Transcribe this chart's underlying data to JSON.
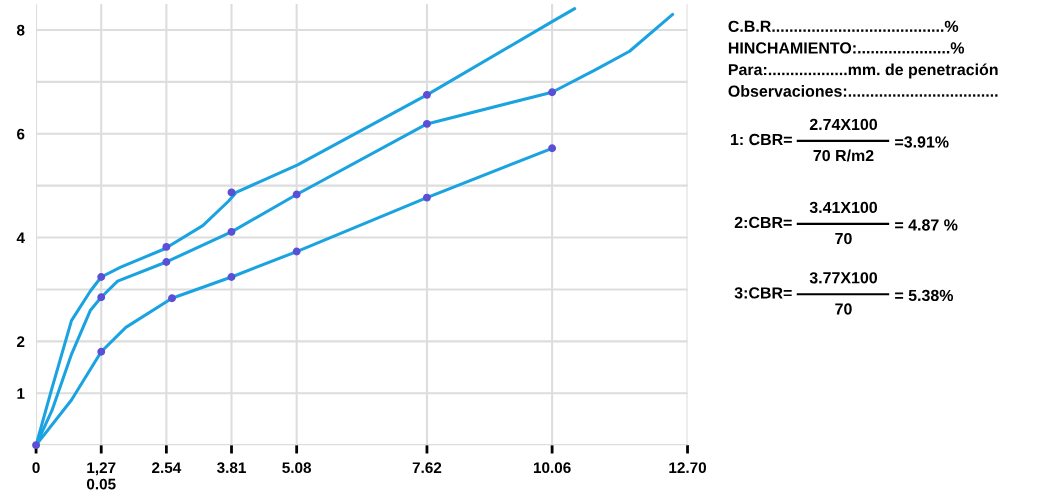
{
  "chart_data": {
    "type": "line",
    "xlim": [
      0,
      12.7
    ],
    "ylim": [
      0,
      8.5
    ],
    "xticks": [
      0,
      {
        "value": 1.27,
        "label": "1,27\n0.05"
      },
      2.54,
      3.81,
      5.08,
      7.62,
      10.06,
      {
        "value": 12.7,
        "label": "12.70"
      }
    ],
    "yticks": [
      {
        "value": 0,
        "label": null
      },
      1,
      2,
      {
        "value": 3,
        "label": null
      },
      4,
      {
        "value": 5,
        "label": null
      },
      6,
      {
        "value": 7,
        "label": null
      },
      8
    ],
    "grid": true,
    "line_style": "solid",
    "series": [
      {
        "color": "#1aa3e0",
        "x": [
          0,
          0.31,
          0.69,
          1.06,
          1.27,
          1.65,
          2.5,
          3.25,
          3.75,
          3.9,
          5.1,
          7.62,
          10.06,
          10.5
        ],
        "values": [
          0,
          1.1,
          2.4,
          2.97,
          3.24,
          3.43,
          3.78,
          4.23,
          4.7,
          4.87,
          5.4,
          6.75,
          8.16,
          8.41
        ],
        "marker": "none"
      },
      {
        "color": "#1aa3e0",
        "x": [
          0,
          0.31,
          0.69,
          1.06,
          1.27,
          1.59,
          2.54,
          3.81,
          5.08,
          7.62,
          10.06,
          10.92,
          11.57,
          12.41
        ],
        "values": [
          0,
          0.67,
          1.75,
          2.6,
          2.85,
          3.16,
          3.53,
          4.11,
          4.83,
          6.19,
          6.8,
          7.24,
          7.59,
          8.3
        ],
        "marker": "none"
      },
      {
        "color": "#1aa3e0",
        "x": [
          0,
          0.69,
          1.27,
          1.75,
          2.65,
          3.81,
          5.08,
          7.62,
          10.06
        ],
        "values": [
          0,
          0.87,
          1.8,
          2.27,
          2.83,
          3.24,
          3.73,
          4.77,
          5.72
        ],
        "marker": "none"
      },
      {
        "type": "scatter",
        "color": "#5b4fd6",
        "x": [
          0,
          1.27,
          2.54,
          3.81,
          7.62,
          1.27,
          2.54,
          3.81,
          5.08,
          7.62,
          10.06,
          1.27,
          2.65,
          3.81,
          5.08,
          7.62,
          10.06
        ],
        "values": [
          0,
          3.24,
          3.82,
          4.87,
          6.75,
          2.85,
          3.53,
          4.11,
          4.83,
          6.19,
          6.8,
          1.8,
          2.83,
          3.24,
          3.73,
          4.77,
          5.72
        ],
        "marker": "circle"
      }
    ],
    "annotations": [
      "C.B.R.......................................%",
      "HINCHAMIENTO:.....................%",
      "Para:..................mm. de penetración",
      "Observaciones:..................................",
      "1: CBR=",
      "2.74X100",
      "70 R/m2",
      "=3.91%",
      "2:CBR=",
      "3.41X100",
      "70",
      "= 4.87 %",
      "3:CBR=",
      "3.77X100",
      "70",
      "= 5.38%"
    ]
  }
}
